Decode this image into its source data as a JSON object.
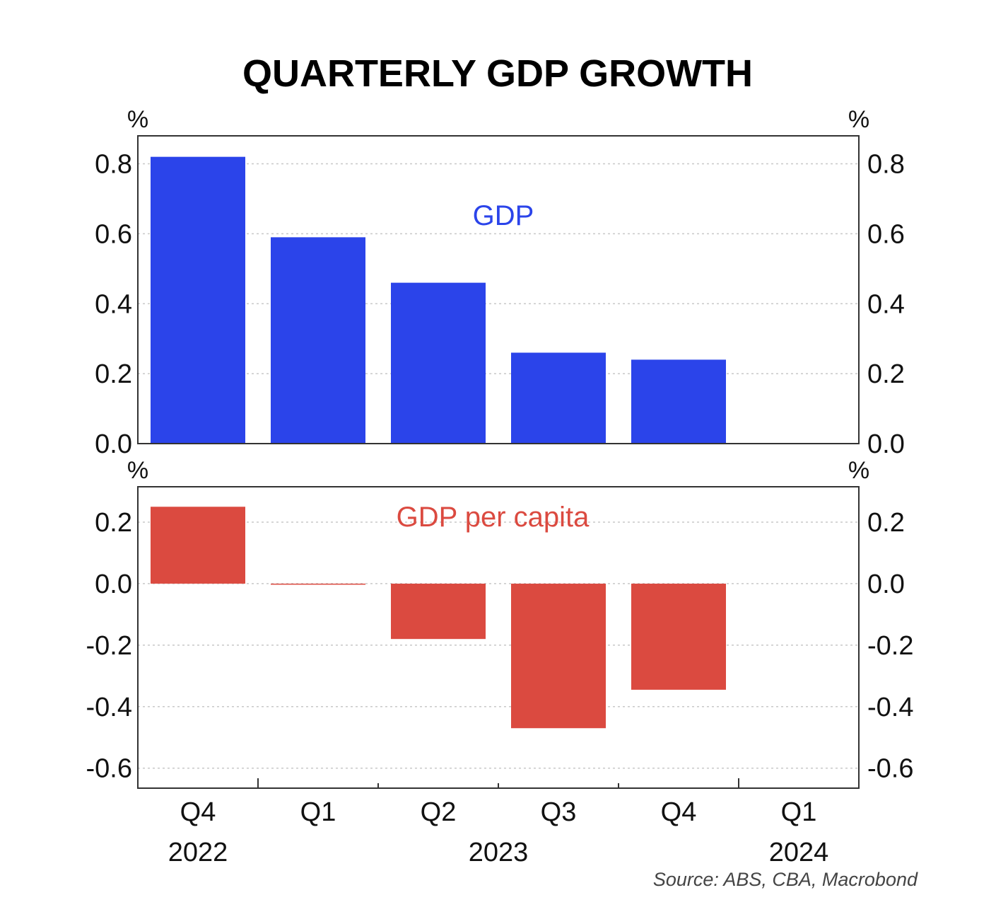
{
  "title": "QUARTERLY GDP GROWTH",
  "source": "Source: ABS, CBA, Macrobond",
  "colors": {
    "gdp": "#2b44ea",
    "gdp_per_capita": "#db4a40"
  },
  "chart_data": [
    {
      "type": "bar",
      "series_label": "GDP",
      "unit": "%",
      "categories": [
        "Q4",
        "Q1",
        "Q2",
        "Q3",
        "Q4",
        "Q1"
      ],
      "values": [
        0.82,
        0.59,
        0.46,
        0.26,
        0.24,
        null
      ],
      "ylim": [
        0,
        0.88
      ],
      "yticks": [
        0.0,
        0.2,
        0.4,
        0.6,
        0.8
      ],
      "ytick_labels": [
        "0.0",
        "0.2",
        "0.4",
        "0.6",
        "0.8"
      ],
      "grid": true
    },
    {
      "type": "bar",
      "series_label": "GDP per capita",
      "unit": "%",
      "categories": [
        "Q4",
        "Q1",
        "Q2",
        "Q3",
        "Q4",
        "Q1"
      ],
      "years": [
        {
          "label": "2022",
          "span": [
            0,
            0
          ]
        },
        {
          "label": "2023",
          "span": [
            1,
            4
          ]
        },
        {
          "label": "2024",
          "span": [
            5,
            5
          ]
        }
      ],
      "values": [
        0.25,
        -0.003,
        -0.18,
        -0.47,
        -0.345,
        null
      ],
      "ylim": [
        -0.665,
        0.315
      ],
      "yticks": [
        0.2,
        0.0,
        -0.2,
        -0.4,
        -0.6
      ],
      "ytick_labels": [
        "0.2",
        "0.0",
        "-0.2",
        "-0.4",
        "-0.6"
      ],
      "grid": true
    }
  ]
}
